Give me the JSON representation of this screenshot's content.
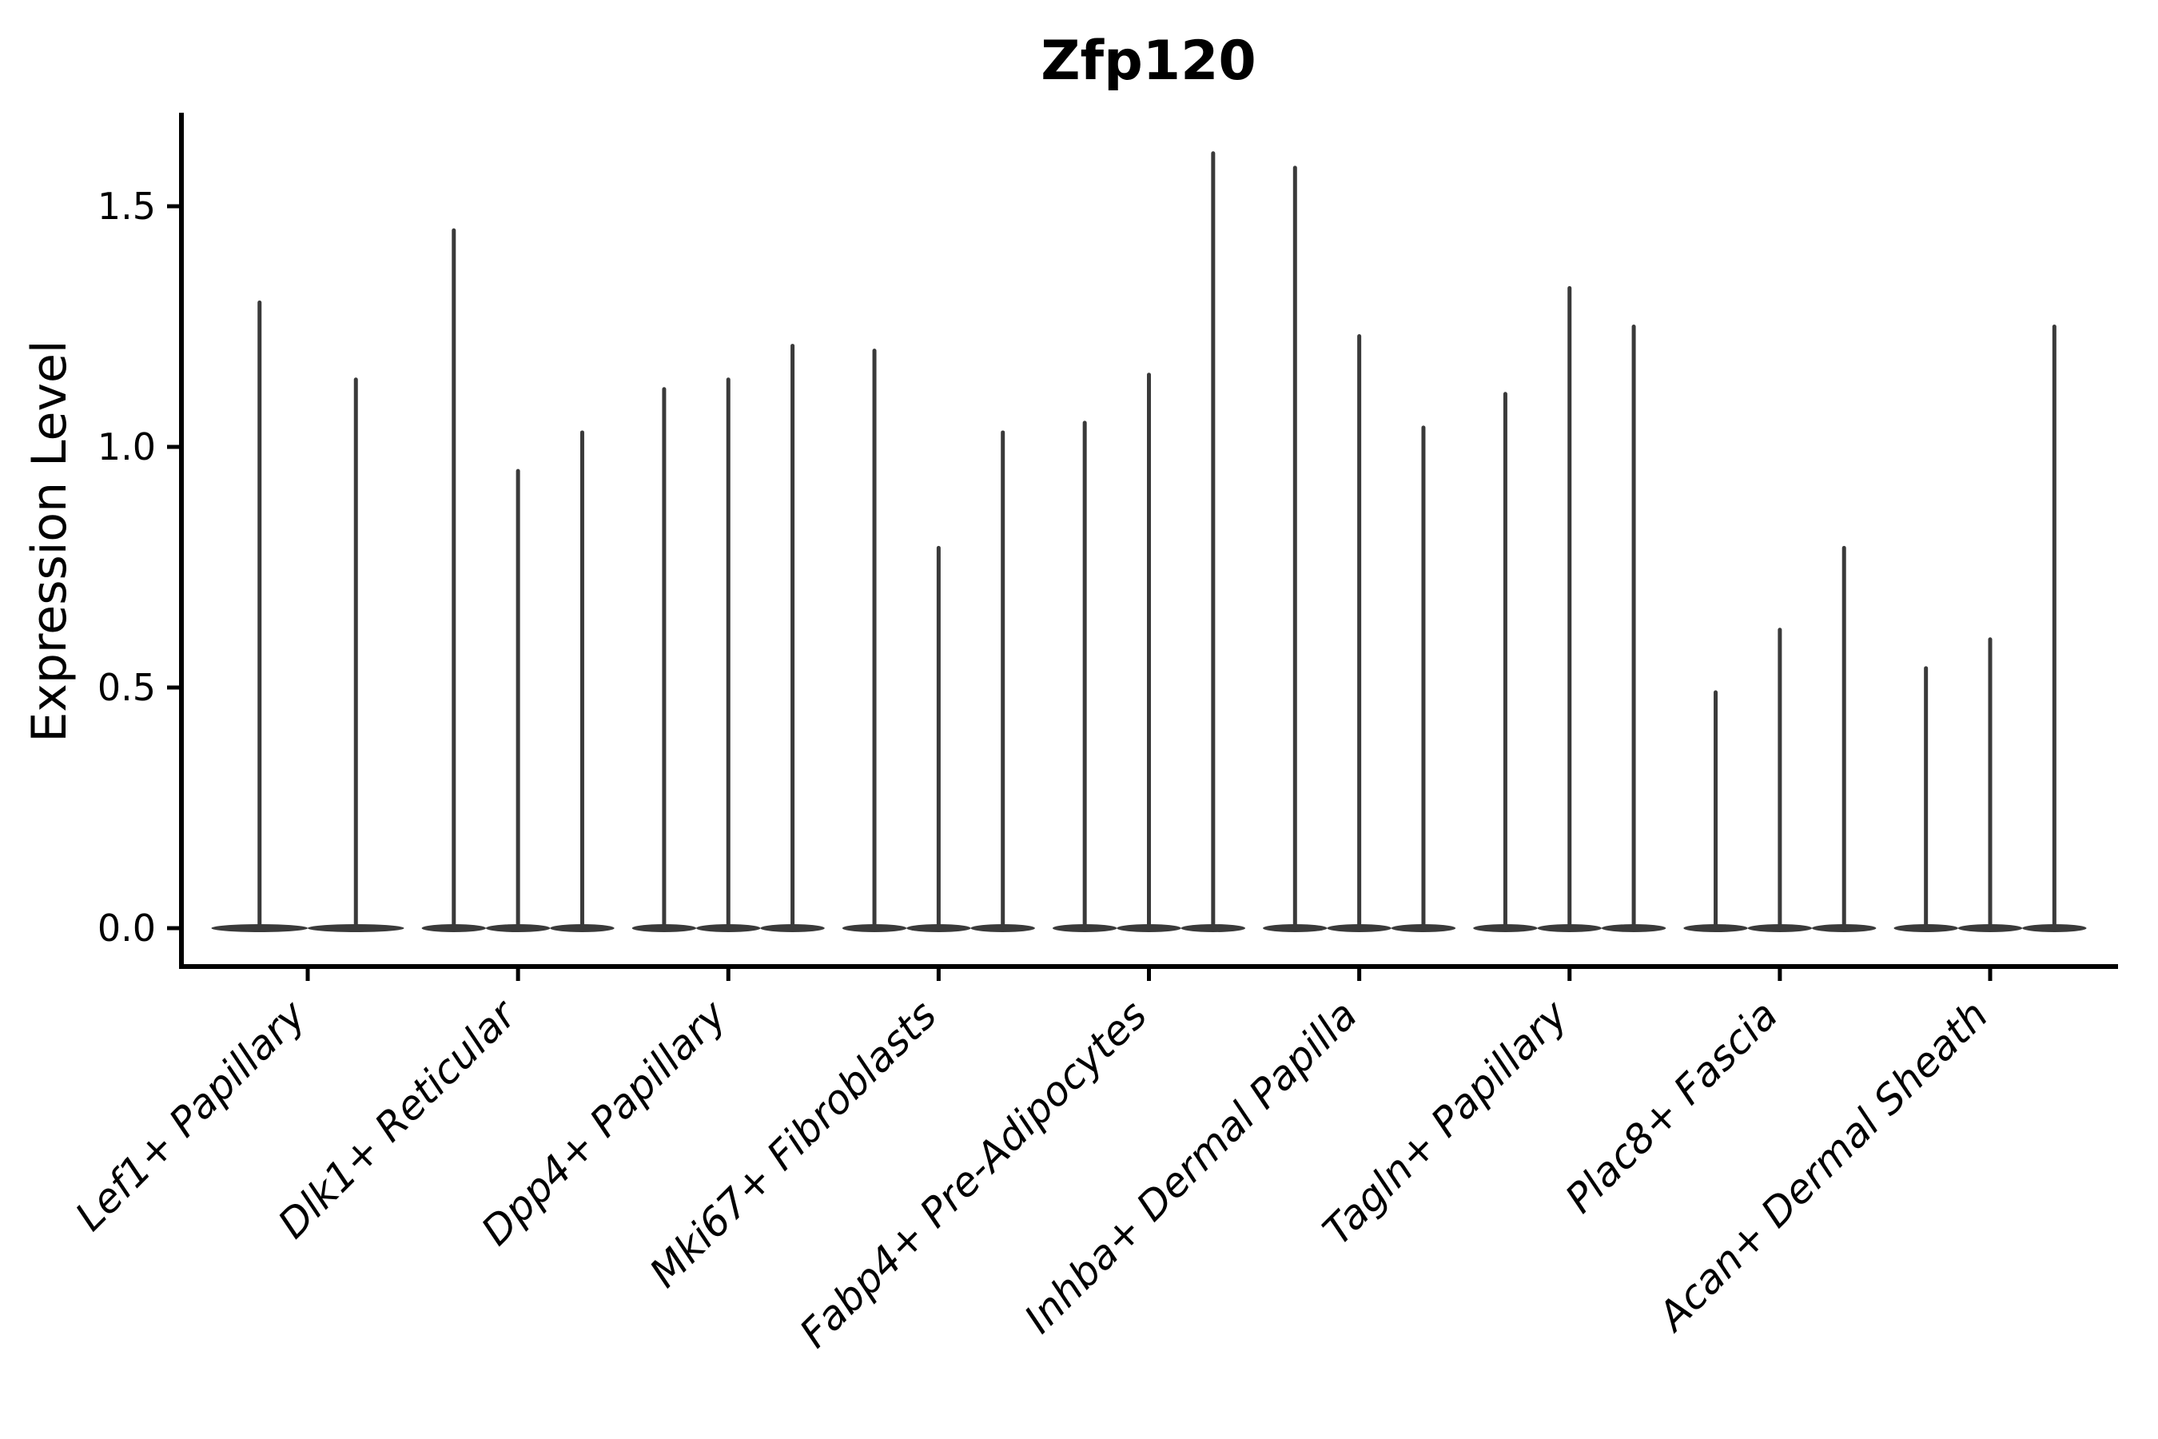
{
  "title": "Zfp120",
  "ylabel": "Expression Level",
  "colors": {
    "violin": "#3a3a3a",
    "axis": "#000000",
    "text": "#000000",
    "background": "#ffffff"
  },
  "chart_data": {
    "type": "violin",
    "title": "Zfp120",
    "xlabel": "",
    "ylabel": "Expression Level",
    "ylim": [
      -0.08,
      1.69
    ],
    "yticks": [
      0.0,
      0.5,
      1.0,
      1.5
    ],
    "ytick_labels": [
      "0.0",
      "0.5",
      "1.0",
      "1.5"
    ],
    "x_tick_rotation": 45,
    "grid": false,
    "legend": "none",
    "categories": [
      "Lef1+ Papillary",
      "Dlk1+ Reticular",
      "Dpp4+ Papillary",
      "Mki67+ Fibroblasts",
      "Fabp4+ Pre-Adipocytes",
      "Inhba+ Dermal Papilla",
      "Tagln+ Papillary",
      "Plac8+ Fascia",
      "Acan+ Dermal Sheath"
    ],
    "groups": [
      {
        "category": "Lef1+ Papillary",
        "violin_peaks": [
          1.3,
          1.14
        ]
      },
      {
        "category": "Dlk1+ Reticular",
        "violin_peaks": [
          1.45,
          0.95,
          1.03
        ]
      },
      {
        "category": "Dpp4+ Papillary",
        "violin_peaks": [
          1.12,
          1.14,
          1.21
        ]
      },
      {
        "category": "Mki67+ Fibroblasts",
        "violin_peaks": [
          1.2,
          0.79,
          1.03
        ]
      },
      {
        "category": "Fabp4+ Pre-Adipocytes",
        "violin_peaks": [
          1.05,
          1.15,
          1.61
        ]
      },
      {
        "category": "Inhba+ Dermal Papilla",
        "violin_peaks": [
          1.58,
          1.23,
          1.04
        ]
      },
      {
        "category": "Tagln+ Papillary",
        "violin_peaks": [
          1.11,
          1.33,
          1.25
        ]
      },
      {
        "category": "Plac8+ Fascia",
        "violin_peaks": [
          0.49,
          0.62,
          0.79
        ]
      },
      {
        "category": "Acan+ Dermal Sheath",
        "violin_peaks": [
          0.54,
          0.6,
          1.25
        ]
      }
    ],
    "shape_note": "Each violin is a near-zero-width density: a wide flat base at expression 0 and a thin vertical spike rising to its maximum value."
  }
}
